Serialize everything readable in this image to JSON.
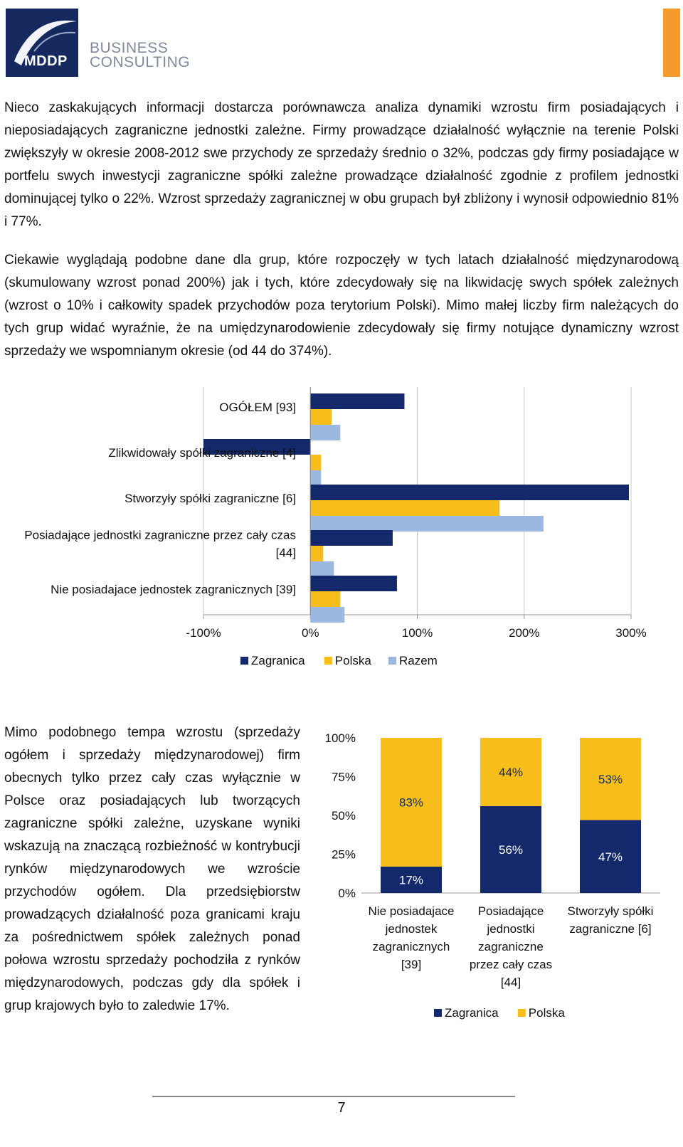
{
  "header": {
    "logo_text": "MDDP",
    "brand_line1": "BUSINESS",
    "brand_line2": "CONSULTING"
  },
  "paragraphs": {
    "p1": "Nieco zaskakujących informacji dostarcza porównawcza analiza dynamiki wzrostu firm posiadających i nieposiadających zagraniczne jednostki zależne. Firmy prowadzące działalność wyłącznie na terenie Polski zwiększyły w okresie 2008-2012 swe przychody ze sprzedaży średnio o 32%, podczas gdy firmy posiadające w portfelu swych inwestycji zagraniczne spółki zależne prowadzące działalność zgodnie z profilem jednostki dominującej tylko o 22%. Wzrost sprzedaży zagranicznej w obu grupach był zbliżony i wynosił odpowiednio 81% i 77%.",
    "p2": "Ciekawie wyglądają podobne dane dla grup, które rozpoczęły w tych latach działalność międzynarodową (skumulowany wzrost ponad 200%) jak i tych, które zdecydowały się na likwidację swych spółek zależnych (wzrost o 10% i całkowity spadek przychodów poza terytorium Polski). Mimo małej liczby firm należących do tych grup widać wyraźnie, że na umiędzynarodowienie zdecydowały się firmy notujące dynamiczny wzrost sprzedaży we wspomnianym okresie (od 44 do 374%).",
    "p3": "Mimo podobnego tempa wzrostu (sprzedaży ogółem i sprzedaży międzynarodowej) firm obecnych tylko przez cały czas wyłącznie w Polsce oraz posiadających lub tworzących zagraniczne spółki zależne, uzyskane wyniki wskazują na znaczącą rozbieżność w kontrybucji rynków międzynarodowych we wzroście przychodów ogółem. Dla przedsiębiorstw prowadzących działalność poza granicami kraju za pośrednictwem spółek zależnych ponad połowa wzrostu sprzedaży pochodziła z rynków międzynarodowych, podczas gdy dla spółek i grup krajowych było to zaledwie 17%."
  },
  "chart_data": [
    {
      "type": "bar",
      "orientation": "horizontal",
      "title": "",
      "categories": [
        "OGÓŁEM [93]",
        "Zlikwidowały spółki zagraniczne [4]",
        "Stworzyły spółki zagraniczne [6]",
        "Posiadające jednostki zagraniczne przez cały czas [44]",
        "Nie posiadajace jednostek zagranicznych [39]"
      ],
      "category_lines": [
        [
          "OGÓŁEM [93]"
        ],
        [
          "Zlikwidowały spółki zagraniczne [4]"
        ],
        [
          "Stworzyły spółki zagraniczne [6]"
        ],
        [
          "Posiadające jednostki zagraniczne przez cały czas",
          "[44]"
        ],
        [
          "Nie posiadajace jednostek zagranicznych [39]"
        ]
      ],
      "series": [
        {
          "name": "Zagranica",
          "color": "#13296b",
          "values": [
            88,
            -100,
            298,
            77,
            81
          ]
        },
        {
          "name": "Polska",
          "color": "#f7bd1a",
          "values": [
            20,
            10,
            177,
            12,
            28
          ]
        },
        {
          "name": "Razem",
          "color": "#9db8e0",
          "values": [
            28,
            10,
            218,
            22,
            32
          ]
        }
      ],
      "xlim": [
        -100,
        300
      ],
      "ticks": [
        -100,
        0,
        100,
        200,
        300
      ],
      "tick_labels": [
        "-100%",
        "0%",
        "100%",
        "200%",
        "300%"
      ],
      "grid": true,
      "legend_position": "bottom"
    },
    {
      "type": "bar",
      "stacked": true,
      "percent_stacked": true,
      "title": "",
      "categories": [
        "Nie posiadajace jednostek zagranicznych [39]",
        "Posiadające jednostki zagraniczne przez cały czas [44]",
        "Stworzyły spółki zagraniczne [6]"
      ],
      "category_lines": [
        [
          "Nie posiadajace",
          "jednostek",
          "zagranicznych",
          "[39]"
        ],
        [
          "Posiadające",
          "jednostki",
          "zagraniczne",
          "przez cały czas",
          "[44]"
        ],
        [
          "Stworzyły spółki",
          "zagraniczne [6]"
        ]
      ],
      "series": [
        {
          "name": "Zagranica",
          "color": "#13296b",
          "values": [
            17,
            56,
            47
          ],
          "labels": [
            "17%",
            "56%",
            "47%"
          ]
        },
        {
          "name": "Polska",
          "color": "#f7bd1a",
          "values": [
            83,
            44,
            53
          ],
          "labels": [
            "83%",
            "44%",
            "53%"
          ]
        }
      ],
      "ylim": [
        0,
        100
      ],
      "ticks": [
        0,
        25,
        50,
        75,
        100
      ],
      "tick_labels": [
        "0%",
        "25%",
        "50%",
        "75%",
        "100%"
      ],
      "legend_position": "bottom"
    }
  ],
  "footer": {
    "page_number": "7"
  }
}
